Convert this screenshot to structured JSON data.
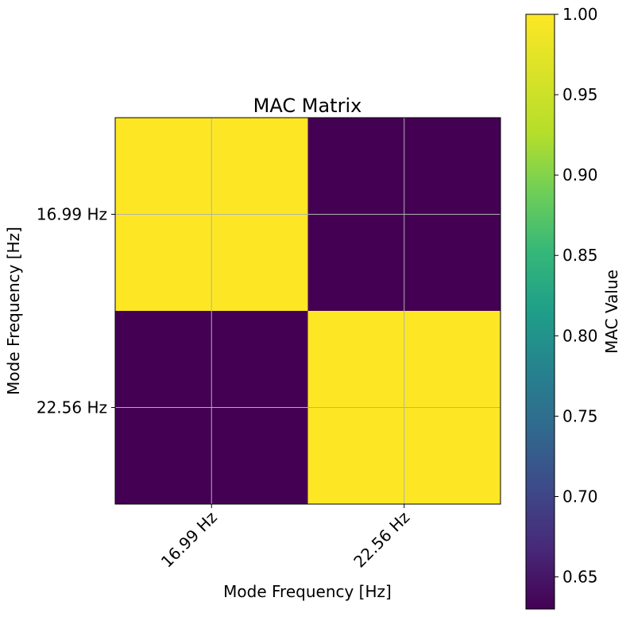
{
  "chart_data": {
    "type": "heatmap",
    "title": "MAC Matrix",
    "xlabel": "Mode Frequency [Hz]",
    "ylabel": "Mode Frequency [Hz]",
    "x_categories": [
      "16.99 Hz",
      "22.56 Hz"
    ],
    "y_categories": [
      "16.99 Hz",
      "22.56 Hz"
    ],
    "values": [
      [
        1.0,
        0.63
      ],
      [
        0.63,
        1.0
      ]
    ],
    "grid": true,
    "colormap": "viridis",
    "colorbar": {
      "label": "MAC Value",
      "range": [
        0.63,
        1.0
      ],
      "ticks": [
        0.65,
        0.7,
        0.75,
        0.8,
        0.85,
        0.9,
        0.95,
        1.0
      ],
      "tick_labels": [
        "0.65",
        "0.70",
        "0.75",
        "0.80",
        "0.85",
        "0.90",
        "0.95",
        "1.00"
      ]
    },
    "colors": {
      "low": "#440154",
      "high": "#fde725",
      "grid": "#b0b0b0"
    }
  }
}
